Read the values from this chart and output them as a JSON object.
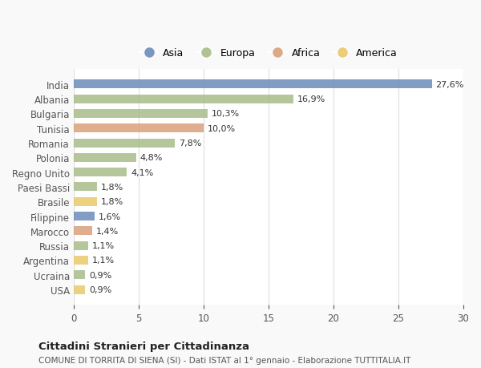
{
  "countries": [
    "India",
    "Albania",
    "Bulgaria",
    "Tunisia",
    "Romania",
    "Polonia",
    "Regno Unito",
    "Paesi Bassi",
    "Brasile",
    "Filippine",
    "Marocco",
    "Russia",
    "Argentina",
    "Ucraina",
    "USA"
  ],
  "values": [
    27.6,
    16.9,
    10.3,
    10.0,
    7.8,
    4.8,
    4.1,
    1.8,
    1.8,
    1.6,
    1.4,
    1.1,
    1.1,
    0.9,
    0.9
  ],
  "labels": [
    "27,6%",
    "16,9%",
    "10,3%",
    "10,0%",
    "7,8%",
    "4,8%",
    "4,1%",
    "1,8%",
    "1,8%",
    "1,6%",
    "1,4%",
    "1,1%",
    "1,1%",
    "0,9%",
    "0,9%"
  ],
  "continents": [
    "Asia",
    "Europa",
    "Europa",
    "Africa",
    "Europa",
    "Europa",
    "Europa",
    "Europa",
    "America",
    "Asia",
    "Africa",
    "Europa",
    "America",
    "Europa",
    "America"
  ],
  "colors": {
    "Asia": "#6b8cba",
    "Europa": "#a8bc8a",
    "Africa": "#d9a07a",
    "America": "#e8c96a"
  },
  "legend_order": [
    "Asia",
    "Europa",
    "Africa",
    "America"
  ],
  "title1": "Cittadini Stranieri per Cittadinanza",
  "title2": "COMUNE DI TORRITA DI SIENA (SI) - Dati ISTAT al 1° gennaio - Elaborazione TUTTITALIA.IT",
  "xlim": [
    0,
    30
  ],
  "xticks": [
    0,
    5,
    10,
    15,
    20,
    25,
    30
  ],
  "background_color": "#f9f9f9",
  "bar_background": "#ffffff"
}
